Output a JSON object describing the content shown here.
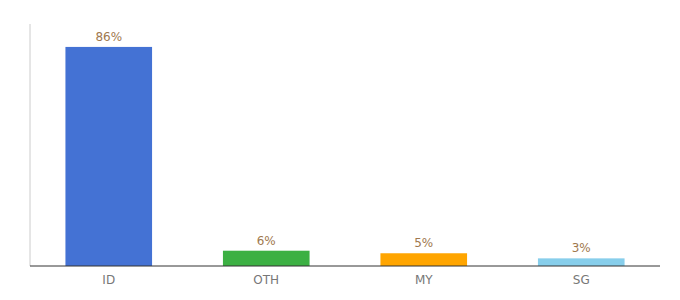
{
  "chart_data": {
    "type": "bar",
    "categories": [
      "ID",
      "OTH",
      "MY",
      "SG"
    ],
    "values": [
      86,
      6,
      5,
      3
    ],
    "value_labels": [
      "86%",
      "6%",
      "5%",
      "3%"
    ],
    "data_labels": true,
    "colors": [
      "#4472d4",
      "#3cb043",
      "#ffa500",
      "#87ceeb"
    ],
    "ylim": [
      0,
      95
    ],
    "yticks": [],
    "tick_labels": "x",
    "grid": false
  }
}
